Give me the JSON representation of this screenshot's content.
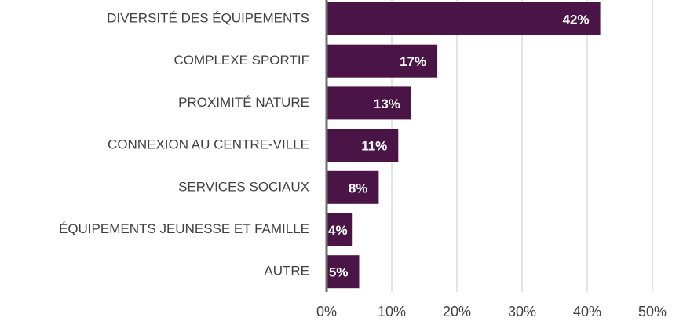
{
  "chart_data": {
    "type": "barh",
    "categories": [
      "DIVERSITÉ DES ÉQUIPEMENTS",
      "COMPLEXE SPORTIF",
      "PROXIMITÉ NATURE",
      "CONNEXION AU CENTRE-VILLE",
      "SERVICES SOCIAUX",
      "ÉQUIPEMENTS JEUNESSE ET FAMILLE",
      "AUTRE"
    ],
    "values": [
      42,
      17,
      13,
      11,
      8,
      4,
      5
    ],
    "value_labels": [
      "42%",
      "17%",
      "13%",
      "11%",
      "8%",
      "4%",
      "5%"
    ],
    "color": "#4b1446",
    "xlim": [
      0,
      50
    ],
    "xticks": [
      {
        "value": 0,
        "label": "0%"
      },
      {
        "value": 10,
        "label": "10%"
      },
      {
        "value": 20,
        "label": "20%"
      },
      {
        "value": 30,
        "label": "30%"
      },
      {
        "value": 40,
        "label": "40%"
      },
      {
        "value": 50,
        "label": "50%"
      }
    ],
    "grid": true
  }
}
